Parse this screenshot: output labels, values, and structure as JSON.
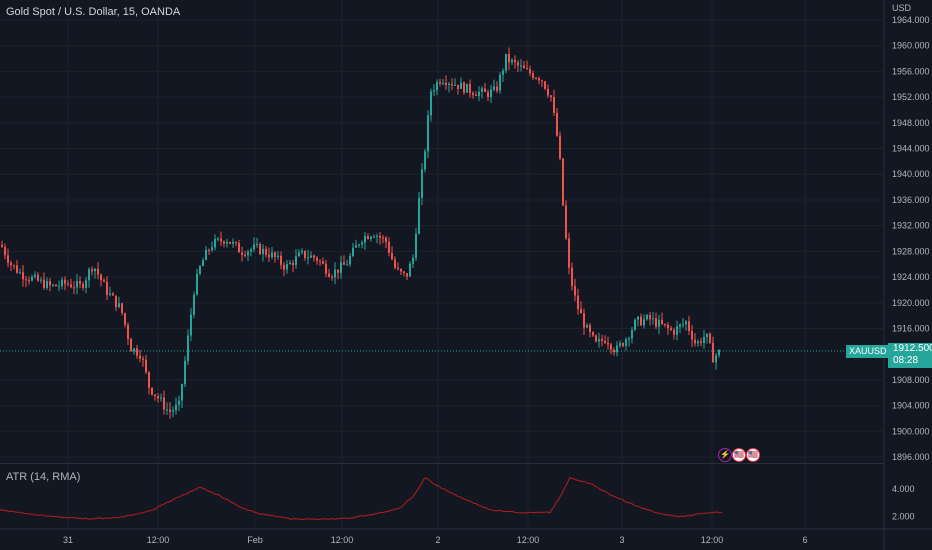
{
  "header": {
    "title": "Gold Spot / U.S. Dollar, 15, OANDA"
  },
  "currency_label": "USD",
  "price_tag": {
    "symbol": "XAUUSD",
    "price": "1912.500",
    "countdown": "08:28"
  },
  "atr_legend": "ATR (14, RMA)",
  "badges": [
    {
      "name": "lightning-icon",
      "glyph": "⚡",
      "color": "#9c27b0"
    },
    {
      "name": "us-flag-icon",
      "glyph": "🇺🇸",
      "color": "#f23645"
    },
    {
      "name": "us-flag-icon-2",
      "glyph": "🇺🇸",
      "color": "#f23645"
    }
  ],
  "colors": {
    "up": "#26a69a",
    "down": "#ef5350",
    "atr": "#b71c1c",
    "background": "#131722",
    "grid": "#2a2e39"
  },
  "chart_data": [
    {
      "type": "candlestick",
      "title": "Gold Spot / U.S. Dollar, 15, OANDA",
      "y_axis_ticks": [
        "1964.000",
        "1960.000",
        "1956.000",
        "1952.000",
        "1948.000",
        "1944.000",
        "1940.000",
        "1936.000",
        "1932.000",
        "1928.000",
        "1924.000",
        "1920.000",
        "1916.000",
        "1908.000",
        "1904.000",
        "1900.000",
        "1896.000"
      ],
      "x_axis_ticks": [
        "31",
        "12:00",
        "Feb",
        "12:00",
        "2",
        "12:00",
        "3",
        "12:00",
        "6"
      ],
      "ylim": [
        1896,
        1964
      ],
      "last_price": 1912.5,
      "series": [
        {
          "values": [
            {
              "x": 0,
              "v": 1929.0
            },
            {
              "x": 10,
              "v": 1926.0
            },
            {
              "x": 20,
              "v": 1924.5
            },
            {
              "x": 35,
              "v": 1923.5
            },
            {
              "x": 50,
              "v": 1922.5
            },
            {
              "x": 65,
              "v": 1923.0
            },
            {
              "x": 80,
              "v": 1922.5
            },
            {
              "x": 92,
              "v": 1926.0
            },
            {
              "x": 105,
              "v": 1922.0
            },
            {
              "x": 120,
              "v": 1919.0
            },
            {
              "x": 130,
              "v": 1913.0
            },
            {
              "x": 140,
              "v": 1912.0
            },
            {
              "x": 148,
              "v": 1907.0
            },
            {
              "x": 158,
              "v": 1905.0
            },
            {
              "x": 168,
              "v": 1903.0
            },
            {
              "x": 178,
              "v": 1904.0
            },
            {
              "x": 185,
              "v": 1912.0
            },
            {
              "x": 193,
              "v": 1922.0
            },
            {
              "x": 200,
              "v": 1926.0
            },
            {
              "x": 210,
              "v": 1929.0
            },
            {
              "x": 225,
              "v": 1930.0
            },
            {
              "x": 240,
              "v": 1928.0
            },
            {
              "x": 255,
              "v": 1928.5
            },
            {
              "x": 270,
              "v": 1927.5
            },
            {
              "x": 285,
              "v": 1925.5
            },
            {
              "x": 300,
              "v": 1927.5
            },
            {
              "x": 315,
              "v": 1927.0
            },
            {
              "x": 330,
              "v": 1924.5
            },
            {
              "x": 345,
              "v": 1926.0
            },
            {
              "x": 360,
              "v": 1930.0
            },
            {
              "x": 372,
              "v": 1931.0
            },
            {
              "x": 385,
              "v": 1929.5
            },
            {
              "x": 395,
              "v": 1925.0
            },
            {
              "x": 405,
              "v": 1924.0
            },
            {
              "x": 412,
              "v": 1927.0
            },
            {
              "x": 418,
              "v": 1936.0
            },
            {
              "x": 424,
              "v": 1944.0
            },
            {
              "x": 430,
              "v": 1953.0
            },
            {
              "x": 440,
              "v": 1955.0
            },
            {
              "x": 455,
              "v": 1954.0
            },
            {
              "x": 470,
              "v": 1953.0
            },
            {
              "x": 485,
              "v": 1952.5
            },
            {
              "x": 495,
              "v": 1953.0
            },
            {
              "x": 505,
              "v": 1958.0
            },
            {
              "x": 515,
              "v": 1957.0
            },
            {
              "x": 525,
              "v": 1956.0
            },
            {
              "x": 540,
              "v": 1955.0
            },
            {
              "x": 550,
              "v": 1952.0
            },
            {
              "x": 558,
              "v": 1944.0
            },
            {
              "x": 563,
              "v": 1933.0
            },
            {
              "x": 568,
              "v": 1925.0
            },
            {
              "x": 575,
              "v": 1920.0
            },
            {
              "x": 585,
              "v": 1916.0
            },
            {
              "x": 595,
              "v": 1913.5
            },
            {
              "x": 605,
              "v": 1914.5
            },
            {
              "x": 615,
              "v": 1912.5
            },
            {
              "x": 625,
              "v": 1914.5
            },
            {
              "x": 635,
              "v": 1917.0
            },
            {
              "x": 648,
              "v": 1917.5
            },
            {
              "x": 660,
              "v": 1916.5
            },
            {
              "x": 672,
              "v": 1915.5
            },
            {
              "x": 685,
              "v": 1917.0
            },
            {
              "x": 695,
              "v": 1913.5
            },
            {
              "x": 705,
              "v": 1915.0
            },
            {
              "x": 712,
              "v": 1911.5
            },
            {
              "x": 720,
              "v": 1912.5
            }
          ]
        }
      ]
    },
    {
      "type": "line",
      "title": "ATR (14, RMA)",
      "y_axis_ticks": [
        "4.000",
        "2.000"
      ],
      "ylim": [
        1.4,
        5.0
      ],
      "series": [
        {
          "name": "ATR (14, RMA)",
          "values": [
            {
              "x": 0,
              "v": 2.5
            },
            {
              "x": 30,
              "v": 2.2
            },
            {
              "x": 60,
              "v": 1.95
            },
            {
              "x": 90,
              "v": 1.85
            },
            {
              "x": 120,
              "v": 1.95
            },
            {
              "x": 150,
              "v": 2.4
            },
            {
              "x": 175,
              "v": 3.3
            },
            {
              "x": 200,
              "v": 4.1
            },
            {
              "x": 220,
              "v": 3.5
            },
            {
              "x": 240,
              "v": 2.7
            },
            {
              "x": 260,
              "v": 2.2
            },
            {
              "x": 290,
              "v": 1.85
            },
            {
              "x": 320,
              "v": 1.8
            },
            {
              "x": 350,
              "v": 1.9
            },
            {
              "x": 375,
              "v": 2.2
            },
            {
              "x": 400,
              "v": 2.6
            },
            {
              "x": 415,
              "v": 3.6
            },
            {
              "x": 425,
              "v": 4.85
            },
            {
              "x": 435,
              "v": 4.3
            },
            {
              "x": 460,
              "v": 3.4
            },
            {
              "x": 490,
              "v": 2.5
            },
            {
              "x": 520,
              "v": 2.3
            },
            {
              "x": 550,
              "v": 2.3
            },
            {
              "x": 560,
              "v": 3.4
            },
            {
              "x": 570,
              "v": 4.8
            },
            {
              "x": 590,
              "v": 4.4
            },
            {
              "x": 610,
              "v": 3.6
            },
            {
              "x": 635,
              "v": 2.8
            },
            {
              "x": 660,
              "v": 2.2
            },
            {
              "x": 680,
              "v": 2.0
            },
            {
              "x": 700,
              "v": 2.2
            },
            {
              "x": 715,
              "v": 2.3
            },
            {
              "x": 722,
              "v": 2.3
            }
          ]
        }
      ]
    }
  ]
}
